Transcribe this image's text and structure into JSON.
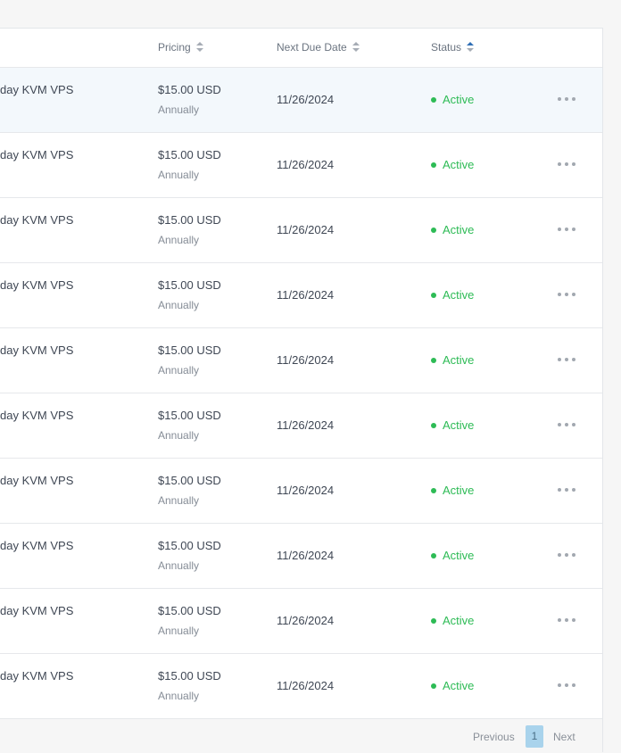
{
  "table": {
    "columns": {
      "pricing": "Pricing",
      "next_due_date": "Next Due Date",
      "status": "Status"
    },
    "rows": [
      {
        "product": "day KVM VPS",
        "price": "$15.00 USD",
        "cycle": "Annually",
        "due": "11/26/2024",
        "status": "Active",
        "highlighted": true
      },
      {
        "product": "day KVM VPS",
        "price": "$15.00 USD",
        "cycle": "Annually",
        "due": "11/26/2024",
        "status": "Active"
      },
      {
        "product": "day KVM VPS",
        "price": "$15.00 USD",
        "cycle": "Annually",
        "due": "11/26/2024",
        "status": "Active"
      },
      {
        "product": "day KVM VPS",
        "price": "$15.00 USD",
        "cycle": "Annually",
        "due": "11/26/2024",
        "status": "Active"
      },
      {
        "product": "day KVM VPS",
        "price": "$15.00 USD",
        "cycle": "Annually",
        "due": "11/26/2024",
        "status": "Active"
      },
      {
        "product": "day KVM VPS",
        "price": "$15.00 USD",
        "cycle": "Annually",
        "due": "11/26/2024",
        "status": "Active"
      },
      {
        "product": "day KVM VPS",
        "price": "$15.00 USD",
        "cycle": "Annually",
        "due": "11/26/2024",
        "status": "Active"
      },
      {
        "product": "day KVM VPS",
        "price": "$15.00 USD",
        "cycle": "Annually",
        "due": "11/26/2024",
        "status": "Active"
      },
      {
        "product": "day KVM VPS",
        "price": "$15.00 USD",
        "cycle": "Annually",
        "due": "11/26/2024",
        "status": "Active"
      },
      {
        "product": "day KVM VPS",
        "price": "$15.00 USD",
        "cycle": "Annually",
        "due": "11/26/2024",
        "status": "Active"
      }
    ]
  },
  "pagination": {
    "previous": "Previous",
    "current": "1",
    "next": "Next"
  },
  "colors": {
    "active_status": "#2dbb55",
    "page_active_bg": "#a9d3ec",
    "sort_active": "#2f6fb6"
  },
  "icons": {
    "sort": "sort-icon",
    "status": "status-dot-icon",
    "row_menu": "more-horizontal-icon"
  }
}
